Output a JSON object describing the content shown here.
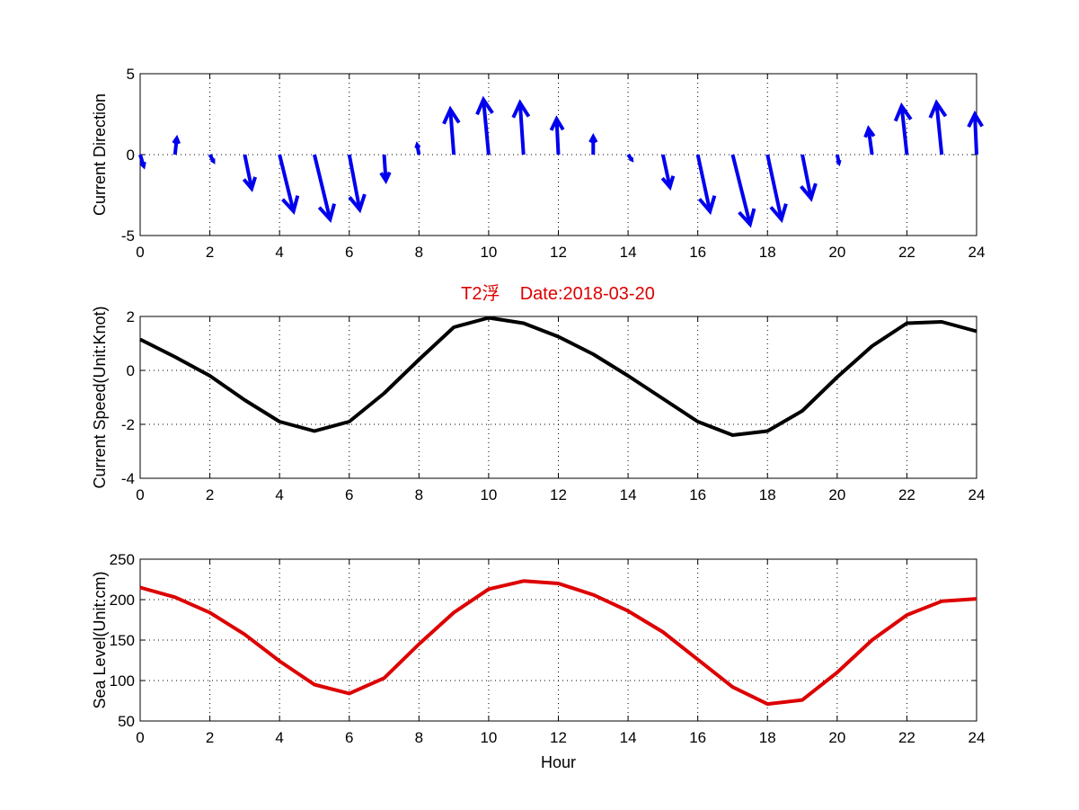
{
  "title": "T2浮    Date:2018-03-20",
  "colors": {
    "direction": "#0000ee",
    "speed": "#000000",
    "sea_level": "#dd0000",
    "title": "#dd0000",
    "grid": "#000000"
  },
  "chart_data": [
    {
      "type": "quiver",
      "ylabel": "Current Direction",
      "xlim": [
        0,
        24
      ],
      "ylim": [
        -5,
        5
      ],
      "x_ticks": [
        0,
        2,
        4,
        6,
        8,
        10,
        12,
        14,
        16,
        18,
        20,
        22,
        24
      ],
      "y_ticks": [
        -5,
        0,
        5
      ],
      "grid": true,
      "vectors": [
        {
          "x": 0,
          "u": 0.1,
          "v": -0.7
        },
        {
          "x": 1,
          "u": 0.05,
          "v": 1.0
        },
        {
          "x": 2,
          "u": 0.1,
          "v": -0.4
        },
        {
          "x": 3,
          "u": 0.2,
          "v": -2.1
        },
        {
          "x": 4,
          "u": 0.4,
          "v": -3.5
        },
        {
          "x": 5,
          "u": 0.45,
          "v": -4.0
        },
        {
          "x": 6,
          "u": 0.3,
          "v": -3.4
        },
        {
          "x": 7,
          "u": 0.05,
          "v": -1.6
        },
        {
          "x": 8,
          "u": -0.05,
          "v": 0.6
        },
        {
          "x": 9,
          "u": -0.1,
          "v": 2.8
        },
        {
          "x": 10,
          "u": -0.15,
          "v": 3.4
        },
        {
          "x": 11,
          "u": -0.1,
          "v": 3.2
        },
        {
          "x": 12,
          "u": -0.05,
          "v": 2.2
        },
        {
          "x": 13,
          "u": 0.0,
          "v": 1.1
        },
        {
          "x": 14,
          "u": 0.1,
          "v": -0.3
        },
        {
          "x": 15,
          "u": 0.2,
          "v": -2.0
        },
        {
          "x": 16,
          "u": 0.35,
          "v": -3.5
        },
        {
          "x": 17,
          "u": 0.5,
          "v": -4.3
        },
        {
          "x": 18,
          "u": 0.4,
          "v": -4.0
        },
        {
          "x": 19,
          "u": 0.25,
          "v": -2.7
        },
        {
          "x": 20,
          "u": 0.05,
          "v": -0.5
        },
        {
          "x": 21,
          "u": -0.1,
          "v": 1.6
        },
        {
          "x": 22,
          "u": -0.15,
          "v": 3.0
        },
        {
          "x": 23,
          "u": -0.15,
          "v": 3.2
        },
        {
          "x": 24,
          "u": -0.05,
          "v": 2.5
        }
      ]
    },
    {
      "type": "line",
      "ylabel": "Current Speed(Unit:Knot)",
      "xlim": [
        0,
        24
      ],
      "ylim": [
        -4,
        2
      ],
      "x_ticks": [
        0,
        2,
        4,
        6,
        8,
        10,
        12,
        14,
        16,
        18,
        20,
        22,
        24
      ],
      "y_ticks": [
        -4,
        -2,
        0,
        2
      ],
      "grid": true,
      "x": [
        0,
        1,
        2,
        3,
        4,
        5,
        6,
        7,
        8,
        9,
        10,
        11,
        12,
        13,
        14,
        15,
        16,
        17,
        18,
        19,
        20,
        21,
        22,
        23,
        24
      ],
      "y": [
        1.15,
        0.5,
        -0.2,
        -1.1,
        -1.9,
        -2.25,
        -1.9,
        -0.85,
        0.4,
        1.6,
        1.95,
        1.75,
        1.25,
        0.6,
        -0.2,
        -1.05,
        -1.9,
        -2.4,
        -2.25,
        -1.5,
        -0.25,
        0.9,
        1.75,
        1.8,
        1.45
      ]
    },
    {
      "type": "line",
      "ylabel": "Sea Level(Unit:cm)",
      "xlabel": "Hour",
      "xlim": [
        0,
        24
      ],
      "ylim": [
        50,
        250
      ],
      "x_ticks": [
        0,
        2,
        4,
        6,
        8,
        10,
        12,
        14,
        16,
        18,
        20,
        22,
        24
      ],
      "y_ticks": [
        50,
        100,
        150,
        200,
        250
      ],
      "grid": true,
      "x": [
        0,
        1,
        2,
        3,
        4,
        5,
        6,
        7,
        8,
        9,
        10,
        11,
        12,
        13,
        14,
        15,
        16,
        17,
        18,
        19,
        20,
        21,
        22,
        23,
        24
      ],
      "y": [
        215,
        203,
        184,
        157,
        124,
        95,
        84,
        103,
        145,
        184,
        213,
        223,
        220,
        206,
        186,
        160,
        126,
        92,
        71,
        76,
        110,
        150,
        181,
        198,
        201
      ]
    }
  ]
}
